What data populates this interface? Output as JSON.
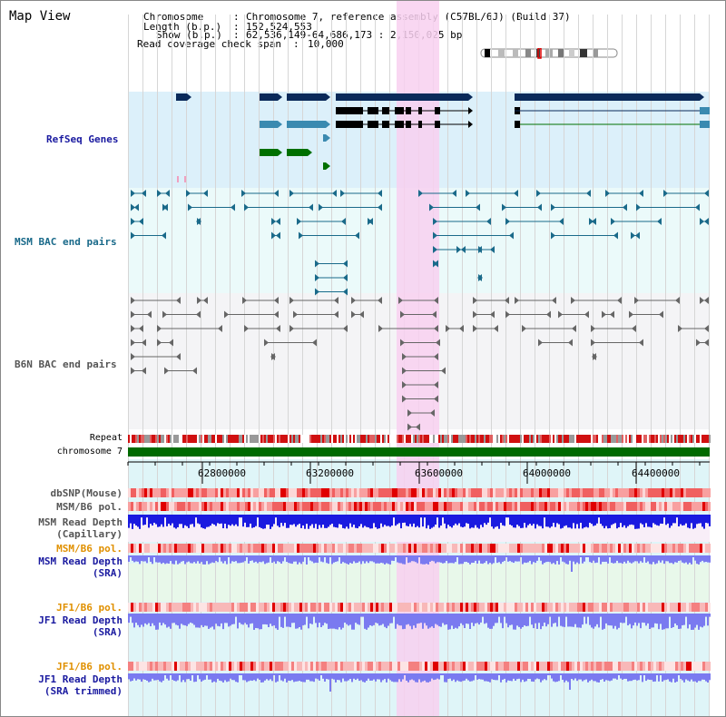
{
  "title": "Map View",
  "header": {
    "chromosome_key": "Chromosome",
    "chromosome_val": "Chromosome 7, reference assembly (C57BL/6J) (Build 37)",
    "length_key": "Length (b.p.)",
    "length_val": "152,524,553",
    "show_key": "Show (b.p.)",
    "show_val": "62,536,149-64,686,173 : 2,150,025 bp",
    "coverage_key": "Read coverage check span",
    "coverage_val": "10,000"
  },
  "tracks": {
    "refseq": "RefSeq Genes",
    "msm_bac": "MSM BAC end pairs",
    "b6n_bac": "B6N BAC end pairs",
    "repeat": "Repeat",
    "chromosome": "chromosome 7",
    "dbsnp": "dbSNP(Mouse)",
    "msm_b6_pol": "MSM/B6 pol.",
    "msm_depth_cap_1": "MSM Read Depth",
    "msm_depth_cap_2": "(Capillary)",
    "msm_b6_pol_sra": "MSM/B6 pol.",
    "msm_depth_sra_1": "MSM Read Depth",
    "msm_depth_sra_2": "(SRA)",
    "jf1_b6_pol": "JF1/B6 pol.",
    "jf1_depth_1": "JF1 Read Depth",
    "jf1_depth_2": "(SRA)",
    "jf1_b6_pol_t": "JF1/B6 pol.",
    "jf1_depth_t_1": "JF1 Read Depth",
    "jf1_depth_t_2": "(SRA trimmed)"
  },
  "axis": {
    "ticks": [
      "62800000",
      "63200000",
      "63600000",
      "64000000",
      "64400000"
    ]
  },
  "colors": {
    "refseq_bg": "#dcf0fa",
    "bac_bg": "#ebfafa",
    "highlight": "#f8d0f0",
    "gene_dark": "#0a2a5a",
    "gene_teal": "#3a8ab0",
    "gene_green": "#007000",
    "msm_pair": "#1a6a8a",
    "b6n_pair": "#666666",
    "chrom_bar": "#006a00",
    "depth_blue": "#1a1ae0",
    "depth_light": "#7a7af0",
    "label_blue": "#1a1aa0",
    "label_orange": "#e09000",
    "label_teal": "#1a6a8a",
    "label_gray": "#555555"
  }
}
